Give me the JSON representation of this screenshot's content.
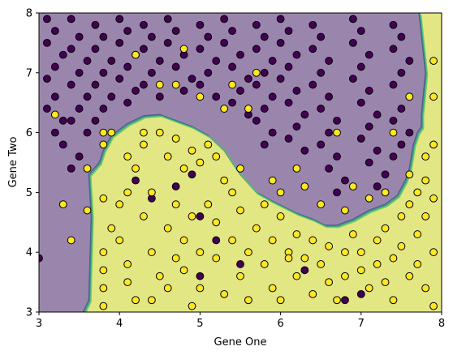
{
  "chart_data": {
    "type": "scatter",
    "title": "",
    "xlabel": "Gene One",
    "ylabel": "Gene Two",
    "xlim": [
      3,
      8
    ],
    "ylim": [
      3,
      8
    ],
    "xticks": [
      "3",
      "4",
      "5",
      "6",
      "7",
      "8"
    ],
    "yticks": [
      "3",
      "4",
      "5",
      "6",
      "7",
      "8"
    ],
    "grid": false,
    "legend": "none",
    "colors": {
      "class0_point": "#440154",
      "class1_point": "#fde725",
      "region_class0": "#9a86ad",
      "region_class1": "#e2e784",
      "boundary_1": "#3b528b",
      "boundary_2": "#21918c",
      "boundary_3": "#5ec962"
    },
    "decision_boundary": [
      [
        3.55,
        3.0
      ],
      [
        3.62,
        3.2
      ],
      [
        3.65,
        4.6
      ],
      [
        3.62,
        5.3
      ],
      [
        3.75,
        5.5
      ],
      [
        3.8,
        5.7
      ],
      [
        3.9,
        5.95
      ],
      [
        4.1,
        6.15
      ],
      [
        4.3,
        6.28
      ],
      [
        4.5,
        6.3
      ],
      [
        4.7,
        6.2
      ],
      [
        4.9,
        6.1
      ],
      [
        5.1,
        5.95
      ],
      [
        5.3,
        5.7
      ],
      [
        5.5,
        5.3
      ],
      [
        5.7,
        5.0
      ],
      [
        5.9,
        4.85
      ],
      [
        6.2,
        4.65
      ],
      [
        6.4,
        4.55
      ],
      [
        6.55,
        4.45
      ],
      [
        6.7,
        4.45
      ],
      [
        6.9,
        4.55
      ],
      [
        7.1,
        4.7
      ],
      [
        7.3,
        4.8
      ],
      [
        7.45,
        4.95
      ],
      [
        7.55,
        5.2
      ],
      [
        7.6,
        5.4
      ],
      [
        7.65,
        5.8
      ],
      [
        7.7,
        6.0
      ],
      [
        7.75,
        6.1
      ],
      [
        7.75,
        6.3
      ],
      [
        7.8,
        7.0
      ],
      [
        7.72,
        8.0
      ]
    ],
    "series": [
      {
        "name": "",
        "points": [
          [
            3.1,
            7.9
          ],
          [
            3.2,
            7.7
          ],
          [
            3.1,
            7.5
          ],
          [
            3.3,
            7.3
          ],
          [
            3.2,
            7.1
          ],
          [
            3.1,
            6.9
          ],
          [
            3.2,
            6.6
          ],
          [
            3.1,
            6.4
          ],
          [
            3.3,
            6.2
          ],
          [
            3.2,
            6.0
          ],
          [
            3.4,
            7.9
          ],
          [
            3.5,
            7.6
          ],
          [
            3.4,
            7.4
          ],
          [
            3.6,
            7.2
          ],
          [
            3.5,
            7.0
          ],
          [
            3.4,
            6.8
          ],
          [
            3.6,
            6.6
          ],
          [
            3.5,
            6.4
          ],
          [
            3.4,
            6.2
          ],
          [
            3.6,
            6.0
          ],
          [
            3.3,
            5.8
          ],
          [
            3.5,
            5.6
          ],
          [
            3.4,
            5.4
          ],
          [
            3.0,
            3.9
          ],
          [
            3.7,
            7.8
          ],
          [
            3.8,
            7.6
          ],
          [
            3.7,
            7.4
          ],
          [
            3.9,
            7.2
          ],
          [
            3.8,
            7.0
          ],
          [
            3.7,
            6.8
          ],
          [
            3.9,
            6.6
          ],
          [
            3.8,
            6.4
          ],
          [
            3.7,
            6.2
          ],
          [
            4.0,
            7.9
          ],
          [
            4.1,
            7.7
          ],
          [
            4.0,
            7.5
          ],
          [
            4.2,
            7.3
          ],
          [
            4.1,
            7.1
          ],
          [
            4.0,
            6.9
          ],
          [
            4.2,
            6.7
          ],
          [
            4.1,
            6.5
          ],
          [
            4.3,
            7.8
          ],
          [
            4.4,
            7.6
          ],
          [
            4.3,
            7.4
          ],
          [
            4.5,
            7.2
          ],
          [
            4.4,
            7.0
          ],
          [
            4.3,
            6.8
          ],
          [
            4.5,
            6.6
          ],
          [
            4.6,
            7.9
          ],
          [
            4.7,
            7.7
          ],
          [
            4.6,
            7.5
          ],
          [
            4.8,
            7.3
          ],
          [
            4.7,
            7.1
          ],
          [
            4.9,
            6.9
          ],
          [
            4.8,
            6.7
          ],
          [
            5.0,
            7.8
          ],
          [
            5.1,
            7.6
          ],
          [
            5.0,
            7.4
          ],
          [
            5.2,
            7.2
          ],
          [
            5.1,
            7.0
          ],
          [
            5.0,
            6.8
          ],
          [
            5.2,
            6.6
          ],
          [
            5.3,
            7.9
          ],
          [
            5.4,
            7.7
          ],
          [
            5.3,
            7.5
          ],
          [
            5.5,
            7.3
          ],
          [
            5.4,
            7.1
          ],
          [
            5.6,
            6.9
          ],
          [
            5.5,
            6.7
          ],
          [
            5.4,
            6.5
          ],
          [
            5.6,
            6.3
          ],
          [
            5.7,
            7.8
          ],
          [
            5.8,
            7.6
          ],
          [
            5.7,
            7.4
          ],
          [
            5.9,
            7.2
          ],
          [
            5.8,
            7.0
          ],
          [
            5.7,
            6.8
          ],
          [
            5.9,
            6.6
          ],
          [
            5.8,
            6.4
          ],
          [
            5.7,
            6.2
          ],
          [
            5.9,
            6.0
          ],
          [
            5.8,
            5.8
          ],
          [
            6.0,
            7.9
          ],
          [
            6.1,
            7.7
          ],
          [
            6.0,
            7.5
          ],
          [
            6.2,
            7.3
          ],
          [
            6.1,
            7.1
          ],
          [
            6.0,
            6.9
          ],
          [
            6.2,
            6.7
          ],
          [
            6.1,
            6.5
          ],
          [
            6.3,
            6.3
          ],
          [
            6.2,
            6.1
          ],
          [
            6.1,
            5.9
          ],
          [
            6.3,
            5.7
          ],
          [
            6.4,
            7.8
          ],
          [
            6.5,
            7.6
          ],
          [
            6.4,
            7.4
          ],
          [
            6.6,
            7.2
          ],
          [
            6.5,
            7.0
          ],
          [
            6.4,
            6.8
          ],
          [
            6.6,
            6.6
          ],
          [
            6.5,
            6.4
          ],
          [
            6.7,
            6.2
          ],
          [
            6.6,
            6.0
          ],
          [
            6.5,
            5.8
          ],
          [
            6.7,
            5.6
          ],
          [
            6.6,
            5.4
          ],
          [
            6.8,
            5.2
          ],
          [
            6.7,
            5.0
          ],
          [
            6.9,
            7.9
          ],
          [
            7.0,
            7.7
          ],
          [
            6.9,
            7.5
          ],
          [
            7.1,
            7.3
          ],
          [
            7.0,
            7.1
          ],
          [
            6.9,
            6.9
          ],
          [
            7.1,
            6.7
          ],
          [
            7.0,
            6.5
          ],
          [
            7.2,
            6.3
          ],
          [
            7.1,
            6.1
          ],
          [
            7.0,
            5.9
          ],
          [
            7.2,
            5.7
          ],
          [
            7.1,
            5.5
          ],
          [
            7.3,
            5.3
          ],
          [
            7.2,
            5.1
          ],
          [
            7.4,
            7.8
          ],
          [
            7.5,
            7.6
          ],
          [
            7.4,
            7.4
          ],
          [
            7.6,
            7.2
          ],
          [
            7.5,
            7.0
          ],
          [
            7.4,
            6.8
          ],
          [
            7.6,
            6.6
          ],
          [
            7.5,
            6.4
          ],
          [
            7.4,
            6.2
          ],
          [
            7.6,
            6.0
          ],
          [
            7.5,
            5.8
          ],
          [
            7.4,
            5.6
          ],
          [
            5.0,
            4.6
          ],
          [
            5.2,
            4.2
          ],
          [
            4.4,
            4.9
          ],
          [
            4.7,
            5.1
          ],
          [
            6.3,
            3.7
          ],
          [
            7.0,
            3.3
          ],
          [
            6.8,
            3.2
          ],
          [
            5.5,
            3.8
          ],
          [
            5.0,
            3.6
          ],
          [
            4.9,
            5.3
          ],
          [
            4.2,
            5.2
          ]
        ]
      },
      {
        "name": "",
        "points": [
          [
            4.2,
            7.3
          ],
          [
            4.8,
            7.4
          ],
          [
            3.2,
            6.3
          ],
          [
            4.5,
            6.8
          ],
          [
            4.7,
            6.8
          ],
          [
            5.0,
            6.6
          ],
          [
            5.4,
            6.8
          ],
          [
            5.7,
            7.0
          ],
          [
            5.3,
            6.4
          ],
          [
            5.6,
            6.4
          ],
          [
            7.6,
            6.6
          ],
          [
            6.7,
            6.0
          ],
          [
            7.4,
            6.0
          ],
          [
            3.8,
            6.0
          ],
          [
            3.6,
            5.4
          ],
          [
            3.3,
            4.8
          ],
          [
            3.6,
            4.7
          ],
          [
            3.4,
            4.2
          ],
          [
            3.8,
            4.9
          ],
          [
            3.8,
            5.8
          ],
          [
            3.9,
            6.0
          ],
          [
            4.1,
            5.6
          ],
          [
            4.3,
            6.0
          ],
          [
            3.8,
            4.0
          ],
          [
            3.8,
            3.7
          ],
          [
            3.8,
            3.4
          ],
          [
            3.8,
            3.1
          ],
          [
            3.9,
            4.4
          ],
          [
            4.0,
            4.8
          ],
          [
            4.1,
            5.0
          ],
          [
            4.2,
            5.4
          ],
          [
            4.0,
            4.2
          ],
          [
            4.1,
            3.8
          ],
          [
            4.1,
            3.5
          ],
          [
            4.2,
            3.2
          ],
          [
            4.3,
            4.6
          ],
          [
            4.4,
            5.0
          ],
          [
            4.3,
            5.8
          ],
          [
            4.5,
            6.0
          ],
          [
            4.4,
            4.0
          ],
          [
            4.5,
            3.6
          ],
          [
            4.4,
            3.2
          ],
          [
            4.6,
            4.4
          ],
          [
            4.7,
            4.8
          ],
          [
            4.6,
            5.6
          ],
          [
            4.7,
            5.9
          ],
          [
            4.7,
            3.9
          ],
          [
            4.6,
            3.4
          ],
          [
            4.8,
            4.2
          ],
          [
            4.9,
            4.6
          ],
          [
            4.8,
            5.4
          ],
          [
            4.9,
            5.7
          ],
          [
            4.8,
            3.7
          ],
          [
            4.9,
            3.1
          ],
          [
            5.0,
            4.0
          ],
          [
            5.1,
            4.8
          ],
          [
            5.0,
            5.5
          ],
          [
            5.1,
            5.8
          ],
          [
            5.0,
            3.4
          ],
          [
            5.2,
            3.9
          ],
          [
            5.2,
            4.5
          ],
          [
            5.3,
            5.2
          ],
          [
            5.2,
            5.6
          ],
          [
            5.3,
            3.3
          ],
          [
            5.4,
            4.2
          ],
          [
            5.5,
            4.7
          ],
          [
            5.4,
            5.0
          ],
          [
            5.5,
            5.4
          ],
          [
            5.5,
            3.6
          ],
          [
            5.6,
            4.0
          ],
          [
            5.7,
            4.4
          ],
          [
            5.6,
            3.2
          ],
          [
            5.8,
            4.8
          ],
          [
            5.8,
            3.8
          ],
          [
            5.9,
            4.2
          ],
          [
            5.9,
            3.4
          ],
          [
            6.0,
            4.6
          ],
          [
            6.1,
            4.0
          ],
          [
            6.0,
            3.2
          ],
          [
            6.2,
            4.3
          ],
          [
            6.2,
            3.6
          ],
          [
            6.3,
            3.9
          ],
          [
            6.4,
            4.2
          ],
          [
            6.4,
            3.3
          ],
          [
            6.5,
            3.8
          ],
          [
            6.6,
            4.1
          ],
          [
            6.6,
            3.5
          ],
          [
            6.7,
            3.2
          ],
          [
            6.8,
            4.0
          ],
          [
            6.8,
            3.6
          ],
          [
            6.9,
            4.3
          ],
          [
            7.0,
            3.7
          ],
          [
            7.0,
            4.0
          ],
          [
            7.1,
            3.4
          ],
          [
            7.2,
            4.2
          ],
          [
            7.2,
            3.8
          ],
          [
            7.3,
            3.5
          ],
          [
            7.3,
            4.4
          ],
          [
            7.4,
            3.9
          ],
          [
            7.4,
            3.2
          ],
          [
            7.5,
            4.6
          ],
          [
            7.5,
            4.1
          ],
          [
            7.6,
            3.6
          ],
          [
            7.6,
            4.8
          ],
          [
            7.7,
            4.3
          ],
          [
            7.7,
            3.8
          ],
          [
            7.8,
            5.2
          ],
          [
            7.8,
            4.6
          ],
          [
            7.8,
            3.4
          ],
          [
            7.9,
            5.8
          ],
          [
            7.9,
            4.9
          ],
          [
            7.9,
            4.0
          ],
          [
            7.9,
            3.1
          ],
          [
            7.8,
            5.6
          ],
          [
            7.9,
            6.6
          ],
          [
            7.9,
            7.2
          ],
          [
            7.7,
            5.0
          ],
          [
            7.6,
            5.3
          ],
          [
            6.2,
            5.4
          ],
          [
            6.0,
            5.0
          ],
          [
            6.3,
            5.1
          ],
          [
            6.5,
            4.8
          ],
          [
            5.9,
            5.2
          ],
          [
            6.8,
            4.7
          ],
          [
            6.9,
            5.1
          ],
          [
            7.1,
            4.9
          ],
          [
            7.3,
            5.0
          ],
          [
            6.1,
            3.9
          ]
        ]
      }
    ]
  }
}
